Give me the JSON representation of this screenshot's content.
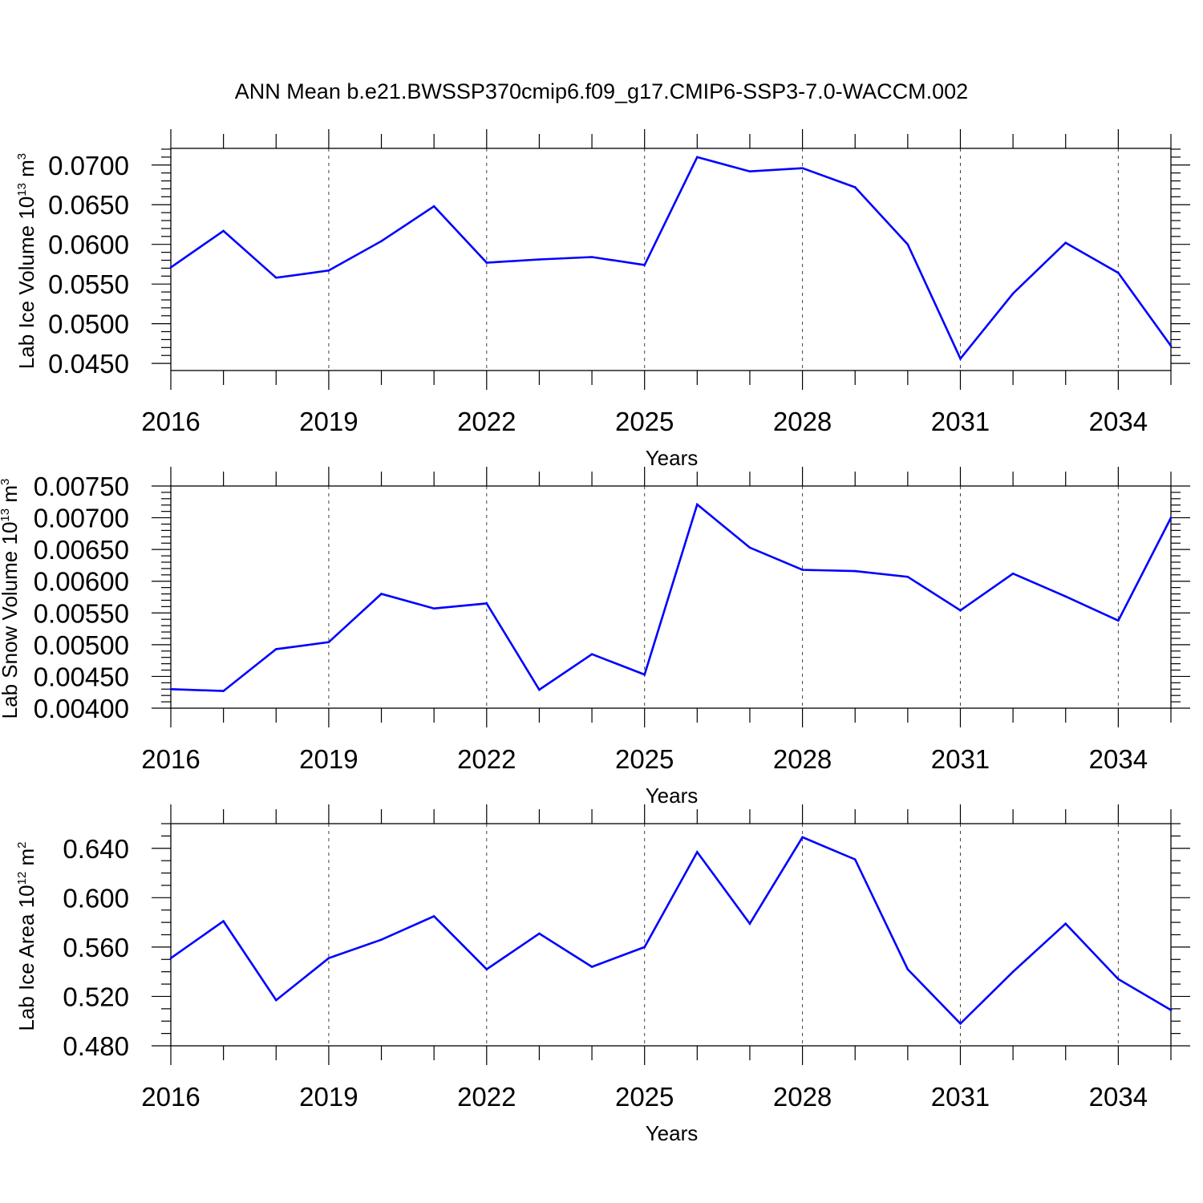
{
  "title": "ANN Mean b.e21.BWSSP370cmip6.f09_g17.CMIP6-SSP3-7.0-WACCM.002",
  "colors": {
    "line": "#0000ff",
    "axes": "#000000",
    "grid": "#444444"
  },
  "chart_data": [
    {
      "type": "line",
      "xlabel": "Years",
      "ylabel": "Lab Ice Volume 10",
      "ylabel_exp": "13",
      "ylabel_unit": " m",
      "ylabel_unit_exp": "3",
      "xlim": [
        2016,
        2035
      ],
      "ylim": [
        0.0441,
        0.0721
      ],
      "x_ticks": [
        2016,
        2019,
        2022,
        2025,
        2028,
        2031,
        2034
      ],
      "x_tick_labels": [
        "2016",
        "2019",
        "2022",
        "2025",
        "2028",
        "2031",
        "2034"
      ],
      "y_ticks": [
        0.045,
        0.05,
        0.055,
        0.06,
        0.065,
        0.07
      ],
      "y_tick_labels": [
        "0.0450",
        "0.0500",
        "0.0550",
        "0.0600",
        "0.0650",
        "0.0700"
      ],
      "grid": "vertical dashed at major x ticks",
      "x": [
        2016,
        2017,
        2018,
        2019,
        2020,
        2021,
        2022,
        2023,
        2024,
        2025,
        2026,
        2027,
        2028,
        2029,
        2030,
        2031,
        2032,
        2033,
        2034,
        2035
      ],
      "values": [
        0.0571,
        0.0617,
        0.0558,
        0.0567,
        0.0604,
        0.0648,
        0.0577,
        0.0581,
        0.0584,
        0.0574,
        0.071,
        0.0692,
        0.0696,
        0.0672,
        0.06,
        0.0456,
        0.0538,
        0.0602,
        0.0564,
        0.0472
      ]
    },
    {
      "type": "line",
      "xlabel": "Years",
      "ylabel": "Lab Snow Volume 10",
      "ylabel_exp": "13",
      "ylabel_unit": " m",
      "ylabel_unit_exp": "3",
      "xlim": [
        2016,
        2035
      ],
      "ylim": [
        0.004,
        0.0075
      ],
      "x_ticks": [
        2016,
        2019,
        2022,
        2025,
        2028,
        2031,
        2034
      ],
      "x_tick_labels": [
        "2016",
        "2019",
        "2022",
        "2025",
        "2028",
        "2031",
        "2034"
      ],
      "y_ticks": [
        0.004,
        0.0045,
        0.005,
        0.0055,
        0.006,
        0.0065,
        0.007,
        0.0075
      ],
      "y_tick_labels": [
        "0.00400",
        "0.00450",
        "0.00500",
        "0.00550",
        "0.00600",
        "0.00650",
        "0.00700",
        "0.00750"
      ],
      "grid": "vertical dashed at major x ticks",
      "x": [
        2016,
        2017,
        2018,
        2019,
        2020,
        2021,
        2022,
        2023,
        2024,
        2025,
        2026,
        2027,
        2028,
        2029,
        2030,
        2031,
        2032,
        2033,
        2034,
        2035
      ],
      "values": [
        0.0043,
        0.00427,
        0.00493,
        0.00504,
        0.0058,
        0.00557,
        0.00565,
        0.00429,
        0.00485,
        0.00453,
        0.00721,
        0.00653,
        0.00618,
        0.00616,
        0.00607,
        0.00554,
        0.00612,
        0.00576,
        0.00538,
        0.007
      ]
    },
    {
      "type": "line",
      "xlabel": "Years",
      "ylabel": "Lab Ice Area 10",
      "ylabel_exp": "12",
      "ylabel_unit": " m",
      "ylabel_unit_exp": "2",
      "xlim": [
        2016,
        2035
      ],
      "ylim": [
        0.48,
        0.66
      ],
      "x_ticks": [
        2016,
        2019,
        2022,
        2025,
        2028,
        2031,
        2034
      ],
      "x_tick_labels": [
        "2016",
        "2019",
        "2022",
        "2025",
        "2028",
        "2031",
        "2034"
      ],
      "y_ticks": [
        0.48,
        0.52,
        0.56,
        0.6,
        0.64
      ],
      "y_tick_labels": [
        "0.480",
        "0.520",
        "0.560",
        "0.600",
        "0.640"
      ],
      "grid": "vertical dashed at major x ticks",
      "x": [
        2016,
        2017,
        2018,
        2019,
        2020,
        2021,
        2022,
        2023,
        2024,
        2025,
        2026,
        2027,
        2028,
        2029,
        2030,
        2031,
        2032,
        2033,
        2034,
        2035
      ],
      "values": [
        0.551,
        0.581,
        0.517,
        0.551,
        0.566,
        0.585,
        0.542,
        0.571,
        0.544,
        0.56,
        0.637,
        0.579,
        0.649,
        0.631,
        0.542,
        0.498,
        0.54,
        0.579,
        0.534,
        0.509
      ]
    }
  ]
}
